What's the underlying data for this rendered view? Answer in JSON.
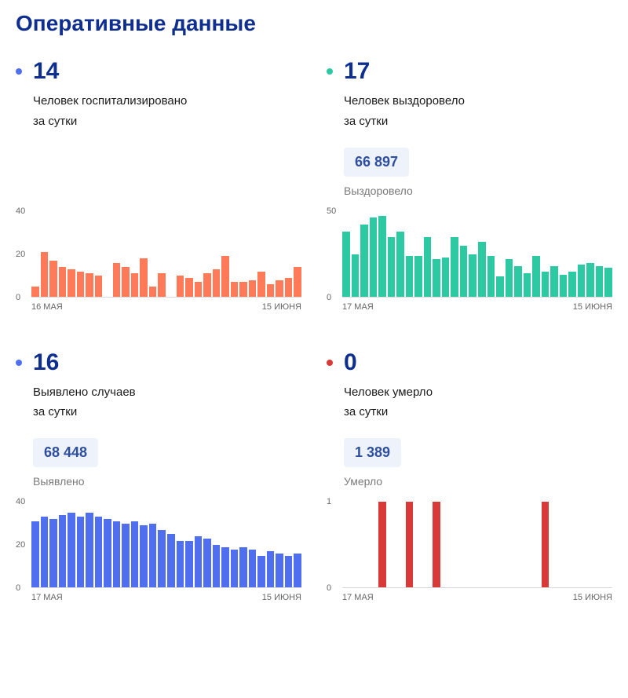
{
  "title": "Оперативные данные",
  "title_color": "#0e2f8f",
  "panels": [
    {
      "id": "hospitalized",
      "dot_color": "#4f6ff0",
      "num_color": "#0e2f8f",
      "number": "14",
      "desc_line1": "Человек госпитализировано",
      "desc_line2": "за сутки",
      "cumulative": null,
      "cumulative_label": null,
      "chart": {
        "bar_color": "#ff7a59",
        "ymax": 40,
        "yticks": [
          0,
          20,
          40
        ],
        "x_start": "16 МАЯ",
        "x_end": "15 ИЮНЯ",
        "values": [
          5,
          21,
          17,
          14,
          13,
          12,
          11,
          10,
          0,
          16,
          14,
          11,
          18,
          5,
          11,
          0,
          10,
          9,
          7,
          11,
          13,
          19,
          7,
          7,
          8,
          12,
          6,
          8,
          9,
          14
        ]
      }
    },
    {
      "id": "recovered",
      "dot_color": "#2cc9a3",
      "num_color": "#0e2f8f",
      "number": "17",
      "desc_line1": "Человек выздоровело",
      "desc_line2": "за сутки",
      "cumulative": "66 897",
      "cumulative_label": "Выздоровело",
      "chart": {
        "bar_color": "#2cc9a3",
        "ymax": 50,
        "yticks": [
          0,
          50
        ],
        "x_start": "17 МАЯ",
        "x_end": "15 ИЮНЯ",
        "values": [
          38,
          25,
          42,
          46,
          47,
          35,
          38,
          24,
          24,
          35,
          22,
          23,
          35,
          30,
          25,
          32,
          24,
          12,
          22,
          18,
          14,
          24,
          15,
          18,
          13,
          15,
          19,
          20,
          18,
          17
        ]
      }
    },
    {
      "id": "cases",
      "dot_color": "#4f6ff0",
      "num_color": "#0e2f8f",
      "number": "16",
      "desc_line1": "Выявлено случаев",
      "desc_line2": "за сутки",
      "cumulative": "68 448",
      "cumulative_label": "Выявлено",
      "chart": {
        "bar_color": "#4f6ff0",
        "ymax": 40,
        "yticks": [
          0,
          20,
          40
        ],
        "x_start": "17 МАЯ",
        "x_end": "15 ИЮНЯ",
        "values": [
          31,
          33,
          32,
          34,
          35,
          33,
          35,
          33,
          32,
          31,
          30,
          31,
          29,
          30,
          27,
          25,
          22,
          22,
          24,
          23,
          20,
          19,
          18,
          19,
          18,
          15,
          17,
          16,
          15,
          16
        ]
      }
    },
    {
      "id": "deaths",
      "dot_color": "#d83a3a",
      "num_color": "#0e2f8f",
      "number": "0",
      "desc_line1": "Человек умерло",
      "desc_line2": "за сутки",
      "cumulative": "1 389",
      "cumulative_label": "Умерло",
      "chart": {
        "bar_color": "#d83a3a",
        "ymax": 1,
        "yticks": [
          0,
          1
        ],
        "x_start": "17 МАЯ",
        "x_end": "15 ИЮНЯ",
        "values": [
          0,
          0,
          0,
          0,
          1,
          0,
          0,
          1,
          0,
          0,
          1,
          0,
          0,
          0,
          0,
          0,
          0,
          0,
          0,
          0,
          0,
          0,
          1,
          0,
          0,
          0,
          0,
          0,
          0,
          0
        ]
      }
    }
  ]
}
